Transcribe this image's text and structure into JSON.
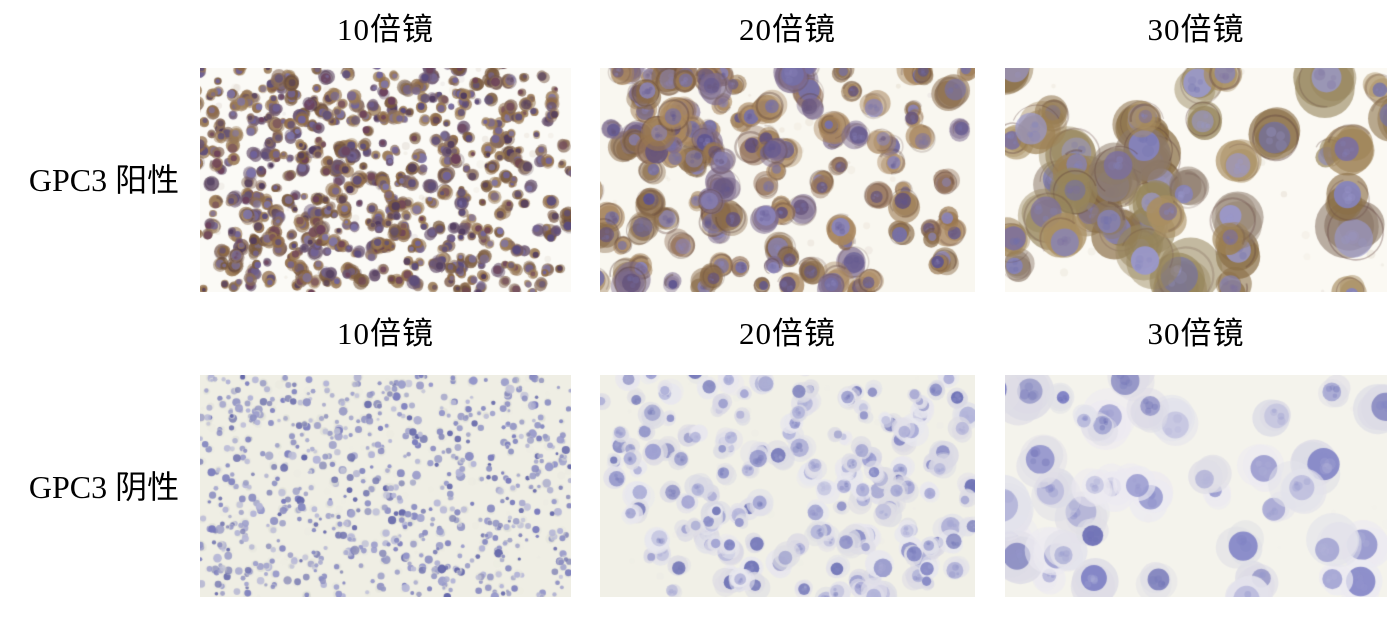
{
  "figure": {
    "row_positive": {
      "label": "GPC3 阳性",
      "headers": [
        "10倍镜",
        "20倍镜",
        "30倍镜"
      ]
    },
    "row_negative": {
      "label": "GPC3 阴性",
      "headers": [
        "10倍镜",
        "20倍镜",
        "30倍镜"
      ]
    },
    "colors": {
      "text": "#000000",
      "positive_stain_brown": "#96744e",
      "hematoxylin_purple": "#7678bb",
      "negative_background_cream": "#efeee4",
      "positive_background": "#fbfaf6"
    },
    "panels": [
      {
        "name": "micrograph-gpc3-positive-10x",
        "magnification": "10倍镜",
        "seed": 11,
        "bg": "#fbfaf6",
        "cyto": [
          "#8f6b47",
          "#7a5a3e",
          "#9a7a55",
          "#6b5570",
          "#8a6d5c"
        ],
        "nuc": [
          "#6f629c",
          "#584a7e",
          "#7d74ab",
          "#4f3a5e",
          "#6b3f5a"
        ],
        "count": 680,
        "r": 5.5,
        "ca": 0.8,
        "nr": 0.6,
        "clusters": 34,
        "clump": 0.6,
        "spread": 120,
        "rim": "#4a3340",
        "speckle": 60
      },
      {
        "name": "micrograph-gpc3-positive-20x",
        "magnification": "20倍镜",
        "seed": 22,
        "bg": "#f9f7f0",
        "cyto": [
          "#9a7850",
          "#8a6b49",
          "#a8865e",
          "#7c6a8e",
          "#937159"
        ],
        "nuc": [
          "#7570aa",
          "#5d5490",
          "#8a84bb",
          "#64527c"
        ],
        "count": 165,
        "r": 12.5,
        "ca": 0.75,
        "nr": 0.58,
        "clusters": 16,
        "clump": 0.6,
        "spread": 130,
        "rim": "#5c4038",
        "speckle": 30
      },
      {
        "name": "micrograph-gpc3-positive-30x",
        "magnification": "30倍镜",
        "seed": 33,
        "bg": "#fbf9f3",
        "cyto": [
          "#9c8053",
          "#8a6f47",
          "#a98f62",
          "#8d7a6a",
          "#96855c"
        ],
        "nuc": [
          "#8583bd",
          "#6f6fae",
          "#9a98cc",
          "#7b6fa0"
        ],
        "count": 56,
        "r": 23,
        "ca": 0.78,
        "nr": 0.55,
        "clusters": 9,
        "clump": 0.55,
        "spread": 170,
        "rim": "#60413c",
        "speckle": 16
      },
      {
        "name": "micrograph-gpc3-negative-10x",
        "magnification": "10倍镜",
        "seed": 44,
        "bg": "#efeee4",
        "cyto": [
          "#e0e0d8",
          "#dadbd3",
          "#e6e6de"
        ],
        "nuc": [
          "#7678bb",
          "#9193c9",
          "#5f62a8",
          "#b0b1d6",
          "#8487c0"
        ],
        "count": 760,
        "r": 3.4,
        "ca": 0.45,
        "nr": 0.85,
        "clusters": 0,
        "clump": 0,
        "spread": 0,
        "rim": null,
        "speckle": 80
      },
      {
        "name": "micrograph-gpc3-negative-20x",
        "magnification": "20倍镜",
        "seed": 55,
        "bg": "#f1f0e7",
        "cyto": [
          "#e1e0e9",
          "#d9d8e4",
          "#e8e7ee",
          "#dedde4"
        ],
        "nuc": [
          "#8487c4",
          "#6d71b5",
          "#9b9dd0",
          "#aeb0d8"
        ],
        "count": 185,
        "r": 10.5,
        "ca": 0.85,
        "nr": 0.6,
        "clusters": 14,
        "clump": 0.45,
        "spread": 130,
        "rim": null,
        "speckle": 40
      },
      {
        "name": "micrograph-gpc3-negative-30x",
        "magnification": "30倍镜",
        "seed": 66,
        "bg": "#f4f3ec",
        "cyto": [
          "#e3e2eb",
          "#dcdbe6",
          "#eceaf1",
          "#e0dfe6"
        ],
        "nuc": [
          "#7d80c4",
          "#9597cd",
          "#6a6db4",
          "#b4b5da"
        ],
        "count": 46,
        "r": 21,
        "ca": 0.85,
        "nr": 0.55,
        "clusters": 8,
        "clump": 0.5,
        "spread": 160,
        "rim": null,
        "speckle": 14
      }
    ]
  }
}
